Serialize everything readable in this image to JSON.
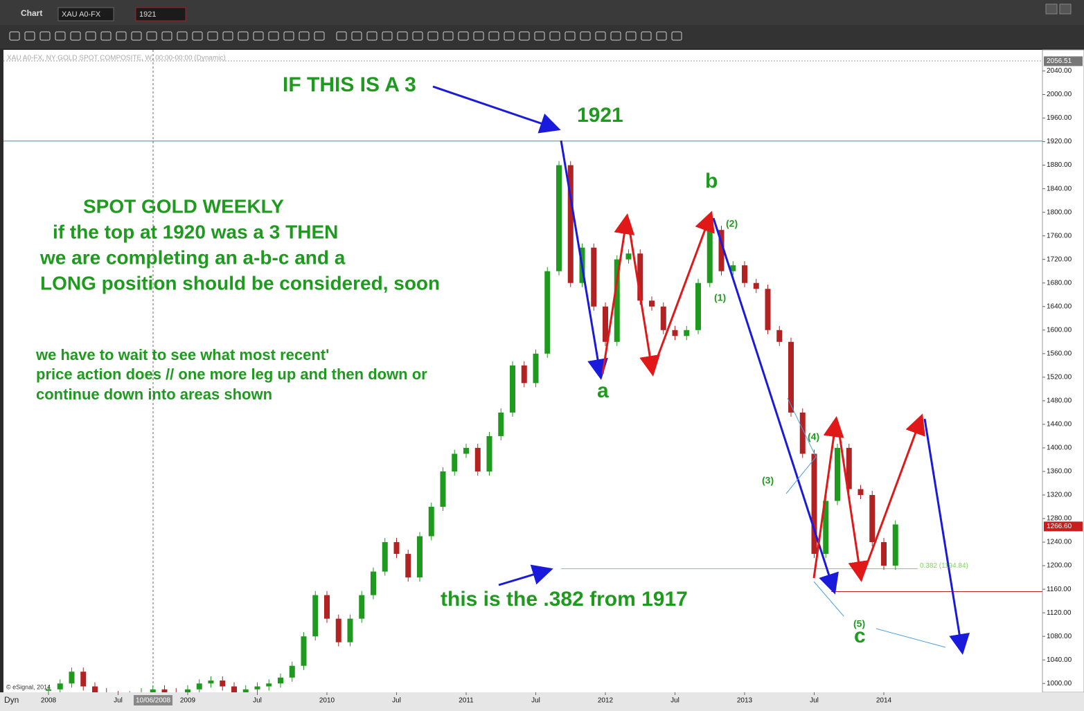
{
  "window": {
    "title": "Chart",
    "symbol": "XAU A0-FX",
    "interval": "1921"
  },
  "chart_data": {
    "type": "candlestick",
    "subtitle": "XAU A0-FX, NY GOLD SPOT COMPOSITE, W, 00:00-00:00 (Dynamic)",
    "categories": [
      "2008",
      null,
      null,
      null,
      null,
      null,
      "Jul",
      null,
      null,
      null,
      null,
      null,
      "2009",
      null,
      null,
      null,
      null,
      null,
      "Jul",
      null,
      null,
      null,
      null,
      null,
      "2010",
      null,
      null,
      null,
      null,
      null,
      "Jul",
      null,
      null,
      null,
      null,
      null,
      "2011",
      null,
      null,
      null,
      null,
      null,
      "Jul",
      null,
      null,
      null,
      null,
      null,
      "2012",
      null,
      null,
      null,
      null,
      null,
      "Jul",
      null,
      null,
      null,
      null,
      null,
      "2013",
      null,
      null,
      null,
      null,
      null,
      "Jul",
      null,
      null,
      null,
      null,
      null,
      "2014",
      null
    ],
    "values": [
      990,
      1000,
      1020,
      995,
      985,
      980,
      975,
      980,
      985,
      990,
      985,
      980,
      990,
      1000,
      1005,
      995,
      985,
      990,
      995,
      1000,
      1010,
      1030,
      1080,
      1150,
      1110,
      1070,
      1110,
      1150,
      1190,
      1240,
      1220,
      1180,
      1250,
      1300,
      1360,
      1390,
      1400,
      1360,
      1420,
      1460,
      1540,
      1510,
      1560,
      1700,
      1880,
      1680,
      1740,
      1640,
      1580,
      1720,
      1730,
      1650,
      1640,
      1600,
      1590,
      1600,
      1680,
      1770,
      1700,
      1710,
      1680,
      1670,
      1600,
      1580,
      1460,
      1390,
      1220,
      1310,
      1400,
      1330,
      1320,
      1240,
      1200,
      1270
    ],
    "up_color": "#1e9a1e",
    "down_color": "#b22222",
    "ylim": [
      985,
      2057
    ],
    "yticks": [
      {
        "value": 1000,
        "label": "1000.00"
      },
      {
        "value": 1040,
        "label": "1040.00"
      },
      {
        "value": 1080,
        "label": "1080.00"
      },
      {
        "value": 1120,
        "label": "1120.00"
      },
      {
        "value": 1160,
        "label": "1160.00"
      },
      {
        "value": 1200,
        "label": "1200.00"
      },
      {
        "value": 1240,
        "label": "1240.00"
      },
      {
        "value": 1280,
        "label": "1280.00"
      },
      {
        "value": 1320,
        "label": "1320.00"
      },
      {
        "value": 1360,
        "label": "1360.00"
      },
      {
        "value": 1400,
        "label": "1400.00"
      },
      {
        "value": 1440,
        "label": "1440.00"
      },
      {
        "value": 1480,
        "label": "1480.00"
      },
      {
        "value": 1520,
        "label": "1520.00"
      },
      {
        "value": 1560,
        "label": "1560.00"
      },
      {
        "value": 1600,
        "label": "1600.00"
      },
      {
        "value": 1640,
        "label": "1640.00"
      },
      {
        "value": 1680,
        "label": "1680.00"
      },
      {
        "value": 1720,
        "label": "1720.00"
      },
      {
        "value": 1760,
        "label": "1760.00"
      },
      {
        "value": 1800,
        "label": "1800.00"
      },
      {
        "value": 1840,
        "label": "1840.00"
      },
      {
        "value": 1880,
        "label": "1880.00"
      },
      {
        "value": 1920,
        "label": "1920.00"
      },
      {
        "value": 1960,
        "label": "1960.00"
      },
      {
        "value": 2000,
        "label": "2000.00"
      },
      {
        "value": 2040,
        "label": "2040.00"
      }
    ],
    "top_price": {
      "value": 2056.51,
      "label": "2056.51"
    },
    "last_price": {
      "value": 1266.6,
      "label": "1266.60"
    },
    "levels": [
      {
        "value": 1921,
        "color": "#2a9aa0"
      },
      {
        "value": 1194.84,
        "color": "#7fd65a",
        "label": "0.382 (1194.84)"
      },
      {
        "value": 1156,
        "color": "#b22222"
      }
    ],
    "cursor_date": "10/06/2008",
    "mode": "Dyn",
    "footer": "© eSignal, 2014",
    "annotations": {
      "if_three": "IF THIS IS A 3",
      "top": "1921",
      "a": "a",
      "b": "b",
      "c": "c",
      "w1": "(1)",
      "w2": "(2)",
      "w3": "(3)",
      "w4": "(4)",
      "w5": "(5)",
      "fib_note": "this is the .382 from 1917",
      "main": [
        "SPOT GOLD WEEKLY",
        "if the top at 1920 was a 3 THEN",
        "we are completing an a-b-c and a",
        "LONG position should be considered, soon"
      ],
      "note": [
        "we have to wait to see what most recent'",
        "price action does // one more leg up and then down or",
        "continue down into areas shown"
      ]
    }
  }
}
